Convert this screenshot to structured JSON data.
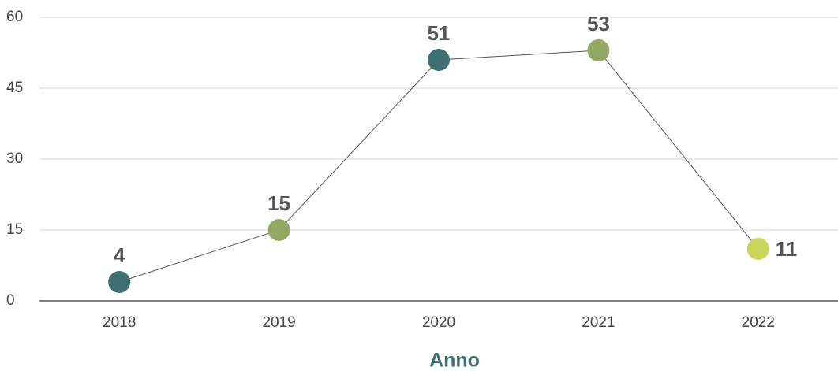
{
  "chart_data": {
    "type": "line",
    "x_label": "Anno",
    "categories": [
      "2018",
      "2019",
      "2020",
      "2021",
      "2022"
    ],
    "values": [
      4,
      15,
      51,
      53,
      11
    ],
    "line_color": "#555555",
    "point_colors": [
      "#3d6f73",
      "#94a866",
      "#3d6f73",
      "#94a866",
      "#c9d65a"
    ],
    "ylim": [
      0,
      60
    ],
    "yticks": [
      0,
      15,
      30,
      45,
      60
    ],
    "grid": true
  }
}
